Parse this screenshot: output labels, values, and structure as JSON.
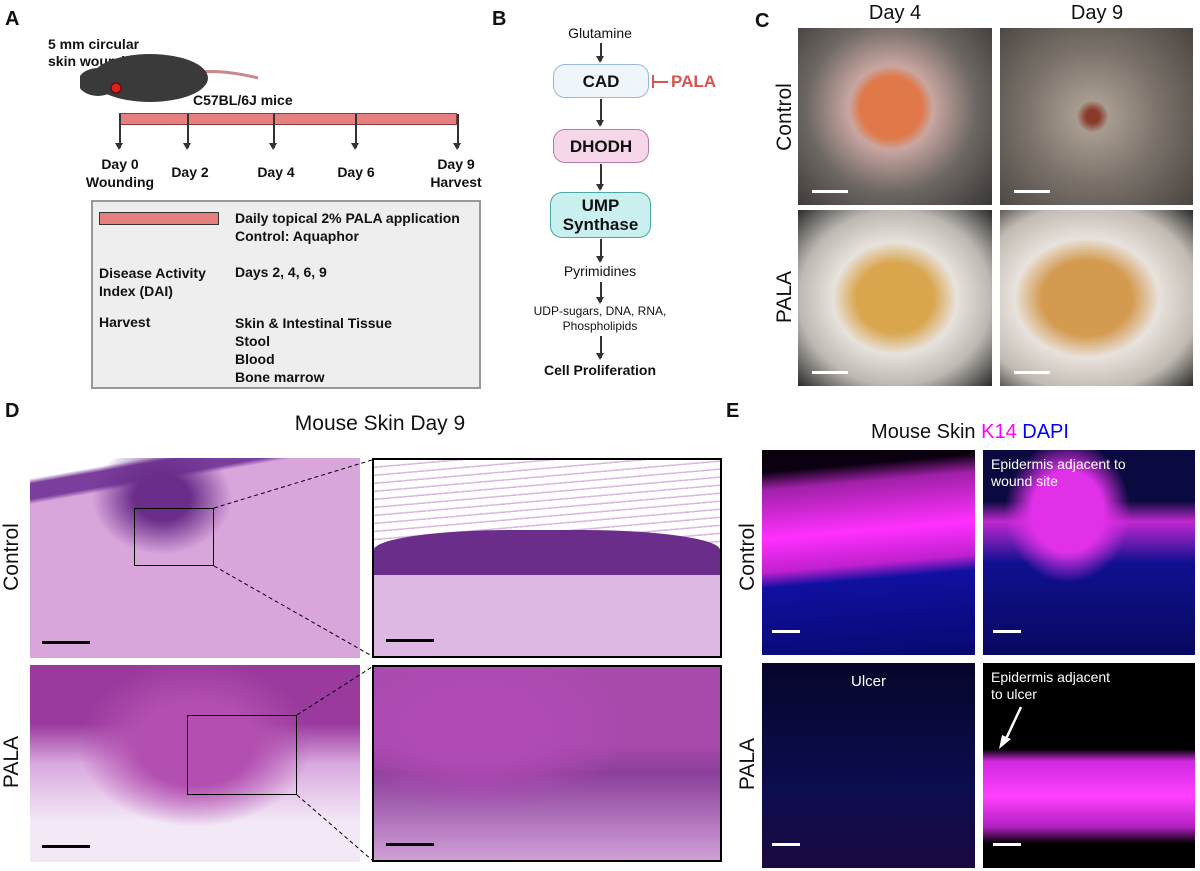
{
  "panels": {
    "a": {
      "label": "A",
      "wound_text": "5 mm circular skin wound",
      "wound_line1": "5 mm circular",
      "wound_line2": "skin wound",
      "strain": "C57BL/6J mice",
      "timeline": [
        {
          "l1": "Day 0",
          "l2": "Wounding"
        },
        {
          "l1": "Day 2",
          "l2": ""
        },
        {
          "l1": "Day 4",
          "l2": ""
        },
        {
          "l1": "Day 6",
          "l2": ""
        },
        {
          "l1": "Day 9",
          "l2": "Harvest"
        }
      ],
      "legend": {
        "treatment_l1": "Daily topical 2% PALA application",
        "treatment_l2": "Control: Aquaphor",
        "dai_label_l1": "Disease Activity",
        "dai_label_l2": "Index (DAI)",
        "dai_value": "Days 2, 4, 6, 9",
        "harvest_label": "Harvest",
        "harvest_items": [
          "Skin & Intestinal Tissue",
          "Stool",
          "Blood",
          "Bone marrow"
        ]
      },
      "colors": {
        "bar": "#e57f80",
        "wound": "#e02020"
      }
    },
    "b": {
      "label": "B",
      "steps": {
        "start": "Glutamine",
        "cad": "CAD",
        "inhibitor": "PALA",
        "dhodh": "DHODH",
        "ump_l1": "UMP",
        "ump_l2": "Synthase",
        "pyr": "Pyrimidines",
        "prod_l1": "UDP-sugars, DNA, RNA,",
        "prod_l2": "Phospholipids",
        "end": "Cell Proliferation"
      },
      "colors": {
        "cad": "#eef6fc",
        "dhodh": "#f6d7ea",
        "ump": "#c9f0ee",
        "inhibitor": "#d9534f"
      }
    },
    "c": {
      "label": "C",
      "cols": [
        "Day 4",
        "Day 9"
      ],
      "rows": [
        "Control",
        "PALA"
      ]
    },
    "d": {
      "label": "D",
      "title": "Mouse Skin Day 9",
      "rows": [
        "Control",
        "PALA"
      ]
    },
    "e": {
      "label": "E",
      "title_a": "Mouse Skin ",
      "title_b": "K14",
      "title_c": " DAPI",
      "rows": [
        "Control",
        "PALA"
      ],
      "annot": {
        "top_right_l1": "Epidermis adjacent to",
        "top_right_l2": "wound site",
        "bottom_left": "Ulcer",
        "bottom_right_l1": "Epidermis adjacent",
        "bottom_right_l2": "to ulcer"
      },
      "colors": {
        "k14": "#ff00ff",
        "dapi": "#0000ff"
      }
    }
  }
}
